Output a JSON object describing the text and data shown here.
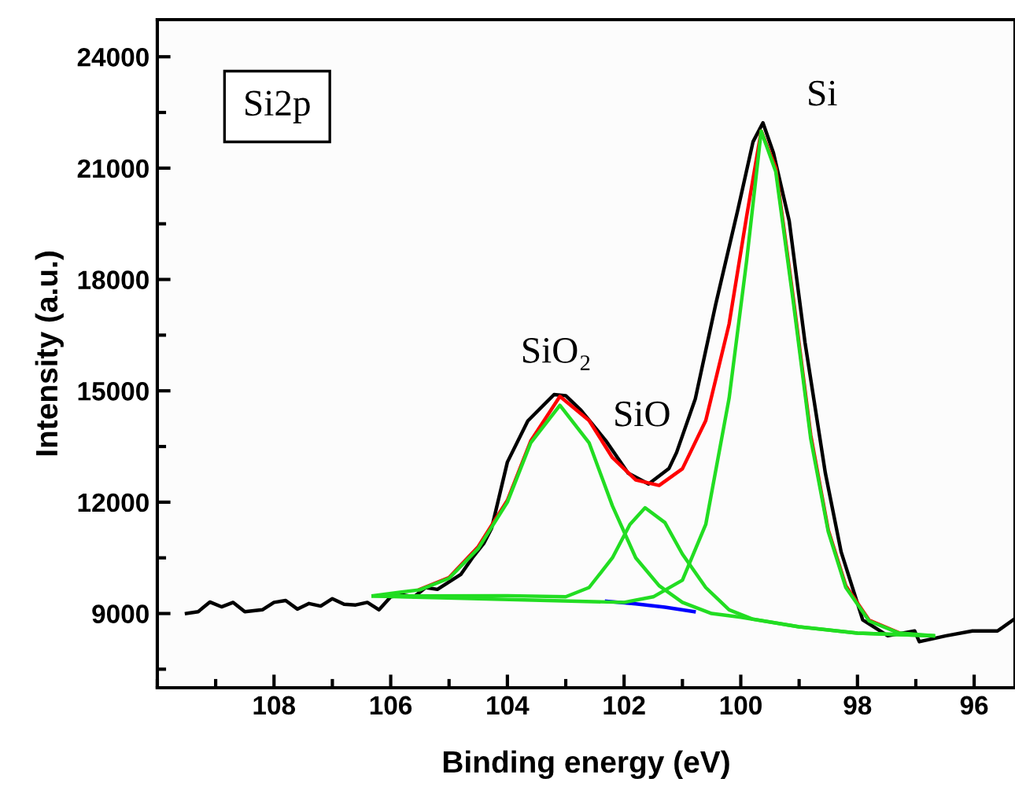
{
  "chart_data": {
    "type": "line",
    "xlabel": "Binding energy (eV)",
    "ylabel": "Intensity (a.u.)",
    "xlim": [
      110,
      95.3
    ],
    "xticks": [
      108,
      106,
      104,
      102,
      100,
      98,
      96
    ],
    "ylim": [
      7000,
      25000
    ],
    "yticks": [
      9000,
      12000,
      15000,
      18000,
      21000,
      24000
    ],
    "grid": false,
    "legend": false,
    "marker": "none",
    "line_style": "solid",
    "annotations": [
      "Si2p",
      "SiO₂",
      "SiO",
      "Si"
    ],
    "series": [
      {
        "color": "#000000",
        "x": [
          109.5,
          109.3,
          109.1,
          108.9,
          108.7,
          108.5,
          108.2,
          108.0,
          107.8,
          107.6,
          107.4,
          107.2,
          107.0,
          106.8,
          106.6,
          106.4,
          106.2,
          106.0,
          105.8,
          105.6,
          105.4,
          105.2,
          105.0,
          104.8,
          104.6,
          104.4,
          104.27,
          104.0,
          103.65,
          103.2,
          103.0,
          102.74,
          102.3,
          101.93,
          101.58,
          101.23,
          101.1,
          100.78,
          100.43,
          100.05,
          99.79,
          99.62,
          99.44,
          99.17,
          98.9,
          98.55,
          98.28,
          97.91,
          97.48,
          97.02,
          96.94,
          96.48,
          96.03,
          95.6,
          95.33
        ],
        "values": [
          9000,
          9050,
          9310,
          9180,
          9300,
          9050,
          9100,
          9300,
          9350,
          9120,
          9270,
          9200,
          9400,
          9250,
          9230,
          9300,
          9100,
          9450,
          9500,
          9450,
          9700,
          9650,
          9850,
          10050,
          10500,
          10900,
          11300,
          13080,
          14190,
          14900,
          14870,
          14480,
          13630,
          12780,
          12490,
          12910,
          13340,
          14780,
          17330,
          19880,
          21710,
          22220,
          21410,
          19580,
          16310,
          12780,
          10660,
          8830,
          8400,
          8530,
          8240,
          8400,
          8530,
          8530,
          8830
        ]
      },
      {
        "color": "#ff0000",
        "x": [
          105.5,
          105.0,
          104.5,
          104.0,
          103.6,
          103.1,
          102.6,
          102.2,
          101.8,
          101.4,
          101.0,
          100.6,
          100.2,
          99.9,
          99.65,
          99.4,
          99.1,
          98.8,
          98.5,
          98.2,
          97.8,
          97.3
        ],
        "values": [
          9650,
          9970,
          10800,
          12050,
          13650,
          14850,
          14200,
          13200,
          12600,
          12450,
          12900,
          14200,
          16800,
          19700,
          22000,
          21000,
          17500,
          13800,
          11250,
          9750,
          8820,
          8490
        ]
      },
      {
        "color": "#0000ff",
        "x": [
          102.3,
          101.8,
          101.3,
          100.8
        ],
        "values": [
          9330,
          9260,
          9170,
          9050
        ]
      },
      {
        "color": "#22dd22",
        "x": [
          106.3,
          105.5,
          105.0,
          104.5,
          104.0,
          103.6,
          103.1,
          102.6,
          102.2,
          101.8,
          101.4,
          101.0,
          100.5,
          100.0,
          99.0,
          98.0,
          96.7
        ],
        "values": [
          9480,
          9640,
          9950,
          10750,
          12000,
          13600,
          14610,
          13600,
          11900,
          10500,
          9750,
          9300,
          9000,
          8900,
          8640,
          8470,
          8400
        ]
      },
      {
        "color": "#22dd22",
        "x": [
          106.3,
          104.0,
          103.0,
          102.6,
          102.2,
          101.9,
          101.64,
          101.3,
          101.0,
          100.6,
          100.2,
          99.8,
          99.0,
          98.0,
          96.7
        ],
        "values": [
          9470,
          9480,
          9450,
          9700,
          10500,
          11400,
          11850,
          11450,
          10600,
          9700,
          9100,
          8850,
          8640,
          8470,
          8400
        ]
      },
      {
        "color": "#22dd22",
        "x": [
          106.3,
          102.0,
          101.5,
          101.0,
          100.6,
          100.2,
          99.9,
          99.65,
          99.4,
          99.1,
          98.8,
          98.5,
          98.2,
          97.8,
          97.3,
          96.7
        ],
        "values": [
          9470,
          9300,
          9450,
          9900,
          11400,
          14800,
          18500,
          22000,
          20900,
          17400,
          13700,
          11200,
          9700,
          8800,
          8480,
          8400
        ]
      }
    ]
  }
}
